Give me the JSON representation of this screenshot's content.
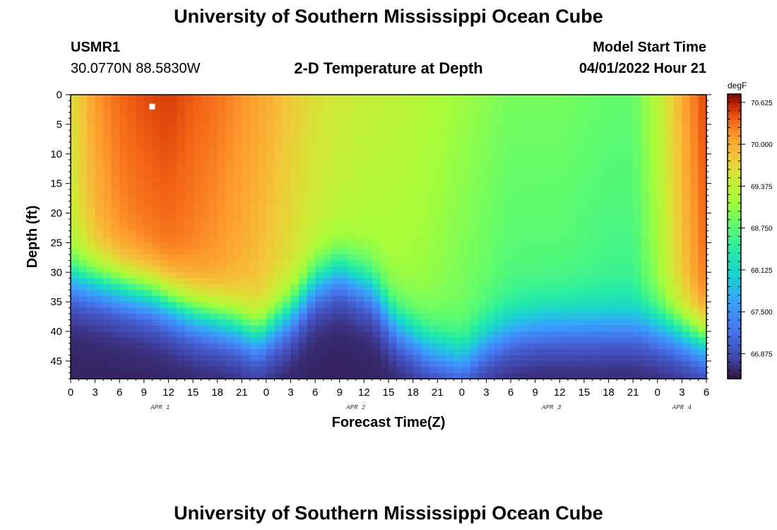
{
  "header": {
    "title": "University of Southern Mississippi Ocean Cube",
    "station_id": "USMR1",
    "coordinates": "30.0770N  88.5830W",
    "plot_title": "2-D Temperature at Depth",
    "model_start_label": "Model Start Time",
    "model_start_value": "04/01/2022 Hour 21"
  },
  "footer": {
    "title": "University of Southern Mississippi Ocean Cube"
  },
  "colors": {
    "plot_border": "#000000",
    "marker": "#ffffff"
  },
  "chart_data": {
    "type": "heatmap",
    "title": "2-D Temperature at Depth",
    "xlabel": "Forecast Time(Z)",
    "ylabel": "Depth (ft)",
    "x_range_hours": [
      0,
      78
    ],
    "y_range_ft": [
      0,
      48
    ],
    "x_tick_labels": [
      "0",
      "3",
      "6",
      "9",
      "12",
      "15",
      "18",
      "21",
      "0",
      "3",
      "6",
      "9",
      "12",
      "15",
      "18",
      "21",
      "0",
      "3",
      "6",
      "9",
      "12",
      "15",
      "18",
      "21",
      "0",
      "3",
      "6"
    ],
    "y_tick_labels": [
      "0",
      "5",
      "10",
      "15",
      "20",
      "25",
      "30",
      "35",
      "40",
      "45"
    ],
    "date_labels": [
      {
        "label": "APR 1",
        "hour": 11
      },
      {
        "label": "APR 2",
        "hour": 35
      },
      {
        "label": "APR 3",
        "hour": 59
      },
      {
        "label": "APR 4",
        "hour": 75
      }
    ],
    "colorbar": {
      "unit": "degF",
      "min": 66.5,
      "max": 70.75,
      "tick_labels": [
        "70.625",
        "70.000",
        "69.375",
        "68.750",
        "68.125",
        "67.500",
        "66.875"
      ],
      "tick_values": [
        70.625,
        70.0,
        69.375,
        68.75,
        68.125,
        67.5,
        66.875
      ]
    },
    "mixed_layer_depth_ft": {
      "hours": [
        0,
        4,
        10,
        15,
        20,
        23,
        27,
        30,
        33,
        37,
        40,
        44,
        48,
        51,
        54,
        58,
        62,
        66,
        70,
        74,
        78
      ],
      "depth": [
        31,
        32,
        34,
        37,
        39,
        41,
        37,
        32,
        30,
        33,
        39,
        43,
        45,
        42,
        40,
        39,
        39,
        39,
        39,
        40,
        42
      ]
    },
    "surface_temperature_degF": {
      "hours": [
        0,
        3,
        6,
        9,
        12,
        18,
        24,
        30,
        36,
        42,
        48,
        54,
        60,
        66,
        69,
        72,
        75,
        78
      ],
      "temp": [
        69.6,
        70.1,
        70.35,
        70.45,
        70.5,
        70.3,
        70.0,
        69.6,
        69.4,
        69.3,
        69.1,
        68.9,
        68.9,
        68.8,
        68.8,
        69.3,
        70.0,
        70.5
      ]
    },
    "marker": {
      "hour": 10,
      "depth_ft": 2
    }
  }
}
